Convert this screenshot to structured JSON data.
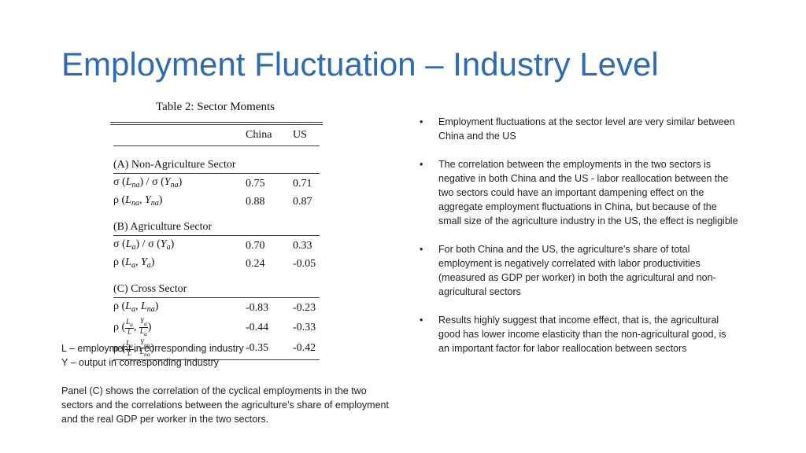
{
  "title": "Employment Fluctuation – Industry Level",
  "table": {
    "caption": "Table 2: Sector Moments",
    "columns": [
      "China",
      "US"
    ],
    "panels": [
      {
        "label": "(A) Non-Agriculture Sector",
        "rows": [
          {
            "label": "σ (Lna) / σ (Yna)",
            "china": "0.75",
            "us": "0.71"
          },
          {
            "label": "ρ (Lna, Yna)",
            "china": "0.88",
            "us": "0.87"
          }
        ]
      },
      {
        "label": "(B) Agriculture Sector",
        "rows": [
          {
            "label": "σ (La) / σ (Ya)",
            "china": "0.70",
            "us": "0.33"
          },
          {
            "label": "ρ (La, Ya)",
            "china": "0.24",
            "us": "-0.05"
          }
        ]
      },
      {
        "label": "(C) Cross Sector",
        "rows": [
          {
            "label": "ρ (La, Lna)",
            "china": "-0.83",
            "us": "-0.23"
          },
          {
            "label": "ρ (La/L, Ya/La)",
            "china": "-0.44",
            "us": "-0.33"
          },
          {
            "label": "ρ (La/L, Yna/Lna)",
            "china": "-0.35",
            "us": "-0.42"
          }
        ]
      }
    ]
  },
  "notes": {
    "line1": "L – employment in corresponding industry",
    "line2": "Y – output in corresponding industry",
    "paragraph": "Panel (C) shows the correlation of the cyclical employments in the two sectors and the correlations between the agriculture’s share of employment and the real GDP per worker in the two sectors."
  },
  "bullets": [
    "Employment fluctuations at the sector level are very similar between China and the US",
    "The correlation between the employments in the two sectors is negative in both China and the US - labor reallocation between the two sectors could have an important dampening effect on the aggregate employment fluctuations in China, but because of the small size of the agriculture industry in the US, the effect is negligible",
    "For both China and the US, the agriculture’s share of total employment is negatively correlated with labor productivities (measured as GDP per worker) in both the agricultural and non-agricultural sectors",
    "Results highly suggest that income effect, that is, the agricultural good has lower income elasticity than the non-agricultural good, is an important factor for labor reallocation between sectors"
  ],
  "bullet_symbol": "•",
  "colors": {
    "title": "#2e6bb0",
    "text": "#222222"
  }
}
